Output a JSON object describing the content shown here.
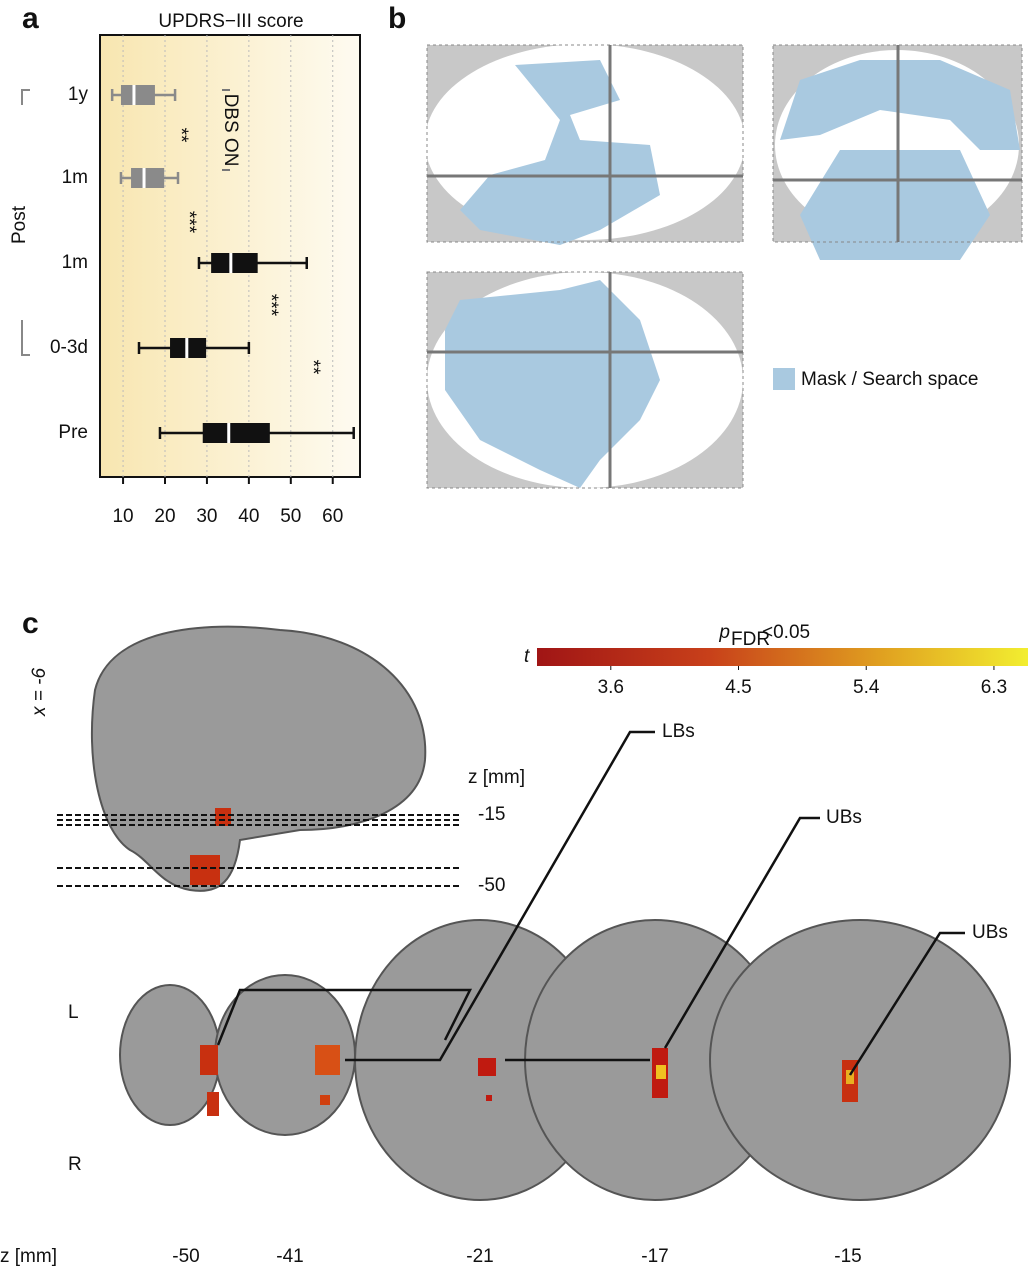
{
  "chart_data": {
    "type": "box",
    "panel_label": "a",
    "title": "UPDRS−III score",
    "categories": [
      "1y",
      "1m",
      "1m",
      "0-3d",
      "Pre"
    ],
    "group_label": "Post",
    "boxes": [
      {
        "whislo": 7.4,
        "q1": 9.5,
        "med": 12.6,
        "q3": 17.6,
        "whishi": 22.4
      },
      {
        "whislo": 9.5,
        "q1": 11.9,
        "med": 15,
        "q3": 19.8,
        "whishi": 23.1
      },
      {
        "whislo": 28.1,
        "q1": 31,
        "med": 35.7,
        "q3": 42.1,
        "whishi": 53.8
      },
      {
        "whislo": 13.8,
        "q1": 21.2,
        "med": 25.2,
        "q3": 29.8,
        "whishi": 40
      },
      {
        "whislo": 18.8,
        "q1": 29,
        "med": 35.2,
        "q3": 45,
        "whishi": 65
      }
    ],
    "box_colors": [
      "#8a8a8a",
      "#8a8a8a",
      "#111111",
      "#111111",
      "#111111"
    ],
    "annotations": [
      "**",
      "***",
      "***",
      "**"
    ],
    "dbs_label": "DBS ON",
    "xlim": [
      4.5,
      66.5
    ],
    "xticks": [
      10,
      20,
      30,
      40,
      50,
      60
    ],
    "grid": true
  },
  "panel_b": {
    "panel_label": "b",
    "legend": "Mask / Search space",
    "color": "#a9c9e0"
  },
  "panel_c": {
    "panel_label": "c",
    "x_label": "x = -6",
    "z_label": "z [mm]",
    "sagittal_z": [
      -15,
      -50
    ],
    "colorbar": {
      "title": {
        "p": "p",
        "sub": "FDR",
        "rest": "<0.05"
      },
      "label": "t",
      "lim": [
        3.08,
        6.54
      ],
      "ticks": [
        3.6,
        4.5,
        5.4,
        6.3
      ]
    },
    "callouts": [
      "LBs",
      "UBs",
      "UBs"
    ],
    "side_labels": [
      "L",
      "R"
    ],
    "axial_z_label": "z [mm]",
    "axial_z": [
      -50,
      -41,
      -21,
      -17,
      -15
    ]
  }
}
